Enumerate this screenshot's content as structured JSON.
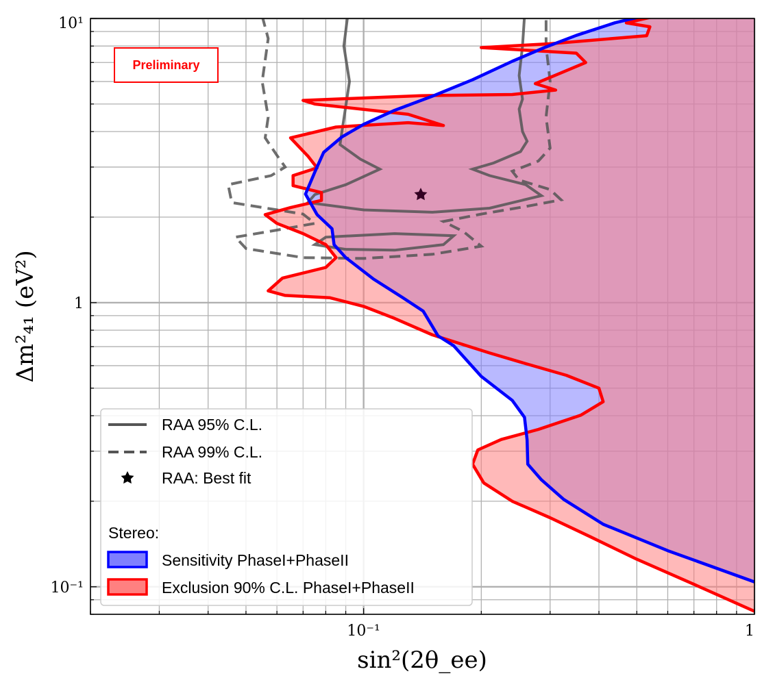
{
  "chart_data": {
    "type": "area",
    "title": "",
    "xlabel": "sin²(2θ_ee)",
    "ylabel": "Δm²₄₁ (eV²)",
    "xscale": "log",
    "yscale": "log",
    "xlim": [
      0.02,
      1
    ],
    "ylim": [
      0.08,
      10
    ],
    "x_ticks": [
      {
        "value": 0.1,
        "label": "10⁻¹"
      },
      {
        "value": 1,
        "label": "1"
      }
    ],
    "y_ticks": [
      {
        "value": 0.1,
        "label": "10⁻¹"
      },
      {
        "value": 1,
        "label": "1"
      },
      {
        "value": 10,
        "label": "10¹"
      }
    ],
    "grid": "major and minor",
    "legend_position": "lower-left",
    "legend": {
      "raa_95": "RAA 95% C.L.",
      "raa_99": "RAA 99% C.L.",
      "raa_best": "RAA: Best fit",
      "stereo_title": "Stereo:",
      "sensitivity": "Sensitivity PhaseI+PhaseII",
      "exclusion": "Exclusion 90% C.L. PhaseI+PhaseII"
    },
    "badge": "Preliminary",
    "colors": {
      "sensitivity_line": "#0000ff",
      "sensitivity_fill": "#7f7fff",
      "exclusion_line": "#ff0000",
      "exclusion_fill": "#ff8080",
      "raa": "#555555",
      "grid": "#b0b0b0"
    },
    "series": [
      {
        "name": "Sensitivity PhaseI+PhaseII",
        "style": "filled-contour",
        "points": [
          [
            1.0,
            0.104
          ],
          [
            0.6,
            0.134
          ],
          [
            0.41,
            0.166
          ],
          [
            0.325,
            0.203
          ],
          [
            0.285,
            0.238
          ],
          [
            0.263,
            0.27
          ],
          [
            0.262,
            0.329
          ],
          [
            0.258,
            0.395
          ],
          [
            0.24,
            0.453
          ],
          [
            0.2,
            0.55
          ],
          [
            0.17,
            0.705
          ],
          [
            0.155,
            0.764
          ],
          [
            0.142,
            0.934
          ],
          [
            0.126,
            1.04
          ],
          [
            0.106,
            1.21
          ],
          [
            0.09,
            1.44
          ],
          [
            0.084,
            1.6
          ],
          [
            0.083,
            1.82
          ],
          [
            0.076,
            2.04
          ],
          [
            0.071,
            2.41
          ],
          [
            0.075,
            2.88
          ],
          [
            0.079,
            3.38
          ],
          [
            0.088,
            3.83
          ],
          [
            0.1,
            4.24
          ],
          [
            0.12,
            4.75
          ],
          [
            0.15,
            5.33
          ],
          [
            0.19,
            6.09
          ],
          [
            0.24,
            7.07
          ],
          [
            0.29,
            7.9
          ],
          [
            0.35,
            8.72
          ],
          [
            0.44,
            9.66
          ],
          [
            0.52,
            10.2
          ],
          [
            1.0,
            10.2
          ]
        ]
      },
      {
        "name": "Exclusion 90% C.L. PhaseI+PhaseII",
        "style": "filled-contour",
        "points": [
          [
            1.0,
            0.082
          ],
          [
            0.7,
            0.102
          ],
          [
            0.5,
            0.125
          ],
          [
            0.38,
            0.15
          ],
          [
            0.3,
            0.175
          ],
          [
            0.24,
            0.2
          ],
          [
            0.203,
            0.232
          ],
          [
            0.19,
            0.27
          ],
          [
            0.196,
            0.303
          ],
          [
            0.225,
            0.33
          ],
          [
            0.28,
            0.358
          ],
          [
            0.36,
            0.402
          ],
          [
            0.41,
            0.448
          ],
          [
            0.4,
            0.5
          ],
          [
            0.33,
            0.555
          ],
          [
            0.26,
            0.61
          ],
          [
            0.21,
            0.665
          ],
          [
            0.15,
            0.77
          ],
          [
            0.12,
            0.88
          ],
          [
            0.1,
            0.97
          ],
          [
            0.082,
            1.04
          ],
          [
            0.063,
            1.06
          ],
          [
            0.057,
            1.1
          ],
          [
            0.062,
            1.22
          ],
          [
            0.08,
            1.33
          ],
          [
            0.085,
            1.44
          ],
          [
            0.08,
            1.6
          ],
          [
            0.07,
            1.75
          ],
          [
            0.06,
            1.9
          ],
          [
            0.056,
            2.04
          ],
          [
            0.065,
            2.16
          ],
          [
            0.078,
            2.29
          ],
          [
            0.078,
            2.44
          ],
          [
            0.066,
            2.58
          ],
          [
            0.066,
            2.8
          ],
          [
            0.076,
            2.98
          ],
          [
            0.072,
            3.28
          ],
          [
            0.065,
            3.8
          ],
          [
            0.085,
            4.15
          ],
          [
            0.13,
            4.3
          ],
          [
            0.16,
            4.2
          ],
          [
            0.13,
            4.6
          ],
          [
            0.075,
            5.0
          ],
          [
            0.07,
            5.15
          ],
          [
            0.14,
            5.35
          ],
          [
            0.24,
            5.4
          ],
          [
            0.31,
            5.6
          ],
          [
            0.275,
            5.9
          ],
          [
            0.33,
            6.55
          ],
          [
            0.37,
            7.0
          ],
          [
            0.35,
            7.55
          ],
          [
            0.2,
            7.9
          ],
          [
            0.3,
            8.15
          ],
          [
            0.53,
            8.7
          ],
          [
            0.54,
            9.35
          ],
          [
            0.47,
            9.65
          ],
          [
            0.56,
            10.2
          ],
          [
            1.0,
            10.2
          ]
        ]
      },
      {
        "name": "RAA 95% C.L.",
        "style": "solid",
        "segments": [
          [
            [
              0.091,
              10.2
            ],
            [
              0.089,
              8.0
            ],
            [
              0.092,
              6.0
            ],
            [
              0.088,
              4.0
            ],
            [
              0.087,
              3.6
            ],
            [
              0.098,
              3.2
            ],
            [
              0.11,
              2.95
            ],
            [
              0.09,
              2.6
            ],
            [
              0.075,
              2.4
            ],
            [
              0.072,
              2.25
            ],
            [
              0.1,
              2.12
            ],
            [
              0.15,
              2.08
            ],
            [
              0.21,
              2.15
            ],
            [
              0.285,
              2.38
            ],
            [
              0.26,
              2.6
            ],
            [
              0.21,
              2.8
            ],
            [
              0.19,
              2.95
            ],
            [
              0.215,
              3.1
            ],
            [
              0.252,
              3.4
            ],
            [
              0.262,
              3.7
            ],
            [
              0.255,
              4.0
            ],
            [
              0.25,
              4.8
            ],
            [
              0.255,
              5.2
            ],
            [
              0.25,
              6.3
            ],
            [
              0.255,
              8.0
            ],
            [
              0.258,
              10.2
            ]
          ],
          [
            [
              0.09,
              1.54
            ],
            [
              0.075,
              1.6
            ],
            [
              0.08,
              1.7
            ],
            [
              0.12,
              1.75
            ],
            [
              0.17,
              1.72
            ],
            [
              0.16,
              1.6
            ],
            [
              0.12,
              1.53
            ],
            [
              0.09,
              1.54
            ]
          ]
        ]
      },
      {
        "name": "RAA 99% C.L.",
        "style": "dashed",
        "segments": [
          [
            [
              0.055,
              10.2
            ],
            [
              0.057,
              8.5
            ],
            [
              0.055,
              6.0
            ],
            [
              0.057,
              4.5
            ],
            [
              0.056,
              3.8
            ],
            [
              0.06,
              3.3
            ],
            [
              0.063,
              3.0
            ],
            [
              0.058,
              2.8
            ],
            [
              0.045,
              2.6
            ],
            [
              0.046,
              2.25
            ],
            [
              0.07,
              2.05
            ],
            [
              0.075,
              1.9
            ],
            [
              0.06,
              1.8
            ],
            [
              0.047,
              1.7
            ],
            [
              0.05,
              1.55
            ],
            [
              0.07,
              1.44
            ],
            [
              0.1,
              1.43
            ],
            [
              0.15,
              1.48
            ],
            [
              0.2,
              1.58
            ],
            [
              0.18,
              1.78
            ],
            [
              0.16,
              1.93
            ],
            [
              0.2,
              2.05
            ],
            [
              0.26,
              2.18
            ],
            [
              0.32,
              2.3
            ],
            [
              0.3,
              2.5
            ],
            [
              0.25,
              2.7
            ],
            [
              0.24,
              2.9
            ],
            [
              0.28,
              3.15
            ],
            [
              0.3,
              3.5
            ],
            [
              0.293,
              4.5
            ],
            [
              0.3,
              6.0
            ],
            [
              0.293,
              8.0
            ],
            [
              0.293,
              10.2
            ]
          ]
        ]
      },
      {
        "name": "RAA: Best fit",
        "style": "marker",
        "points": [
          [
            0.14,
            2.4
          ]
        ]
      }
    ]
  }
}
